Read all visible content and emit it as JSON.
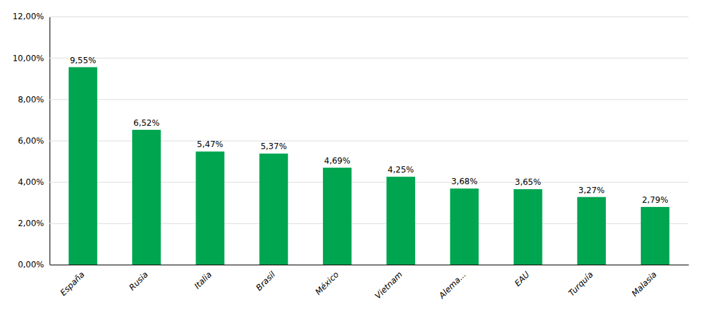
{
  "chart_data": {
    "type": "bar",
    "categories": [
      "España",
      "Rusia",
      "Italia",
      "Brasil",
      "México",
      "Vietnam",
      "Alema...",
      "EAU",
      "Turquía",
      "Malasia"
    ],
    "values": [
      9.55,
      6.52,
      5.47,
      5.37,
      4.69,
      4.25,
      3.68,
      3.65,
      3.27,
      2.79
    ],
    "value_labels": [
      "9,55%",
      "6,52%",
      "5,47%",
      "5,37%",
      "4,69%",
      "4,25%",
      "3,68%",
      "3,65%",
      "3,27%",
      "2,79%"
    ],
    "color": "#00A550",
    "ylim": [
      0,
      12
    ],
    "yticks": [
      {
        "value": 0,
        "label": "0,00%"
      },
      {
        "value": 2,
        "label": "2,00%"
      },
      {
        "value": 4,
        "label": "4,00%"
      },
      {
        "value": 6,
        "label": "6,00%"
      },
      {
        "value": 8,
        "label": "8,00%"
      },
      {
        "value": 10,
        "label": "10,00%"
      },
      {
        "value": 12,
        "label": "12,00%"
      }
    ],
    "grid": true,
    "data_labels": true
  }
}
